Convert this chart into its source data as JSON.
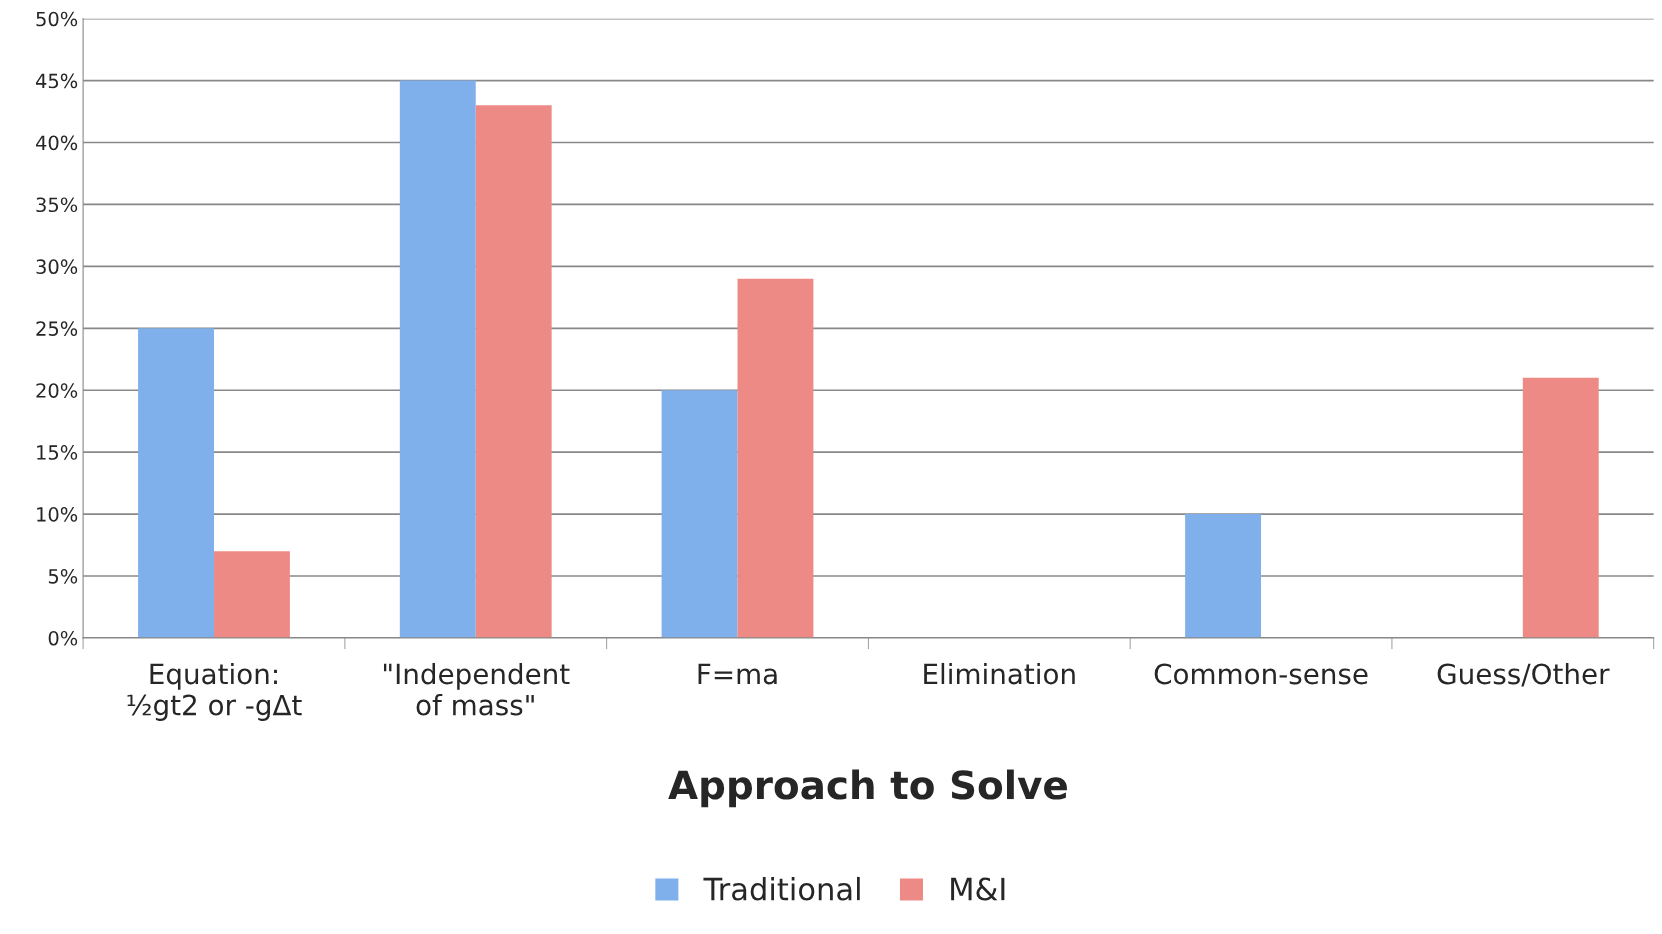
{
  "chart_data": {
    "type": "bar",
    "xlabel": "Approach to Solve",
    "categories": [
      "Equation: ½gt2 or -gΔt",
      "\"Independent of mass\"",
      "F=ma",
      "Elimination",
      "Common-sense",
      "Guess/Other"
    ],
    "series": [
      {
        "name": "Traditional",
        "color": "#7fb0ec",
        "values": [
          25,
          45,
          20,
          null,
          10,
          null
        ]
      },
      {
        "name": "M&I",
        "color": "#ee8a85",
        "values": [
          7,
          43,
          29,
          null,
          null,
          21
        ]
      }
    ],
    "ylim": [
      0,
      50
    ],
    "yticks": [
      {
        "value": 0,
        "label": "0%"
      },
      {
        "value": 5,
        "label": "5%"
      },
      {
        "value": 10,
        "label": "10%"
      },
      {
        "value": 15,
        "label": "15%"
      },
      {
        "value": 20,
        "label": "20%"
      },
      {
        "value": 25,
        "label": "25%"
      },
      {
        "value": 30,
        "label": "30%"
      },
      {
        "value": 35,
        "label": "35%"
      },
      {
        "value": 40,
        "label": "40%"
      },
      {
        "value": 45,
        "label": "45%"
      },
      {
        "value": 50,
        "label": "50%"
      }
    ],
    "grid": "y",
    "legend": "bottom"
  }
}
